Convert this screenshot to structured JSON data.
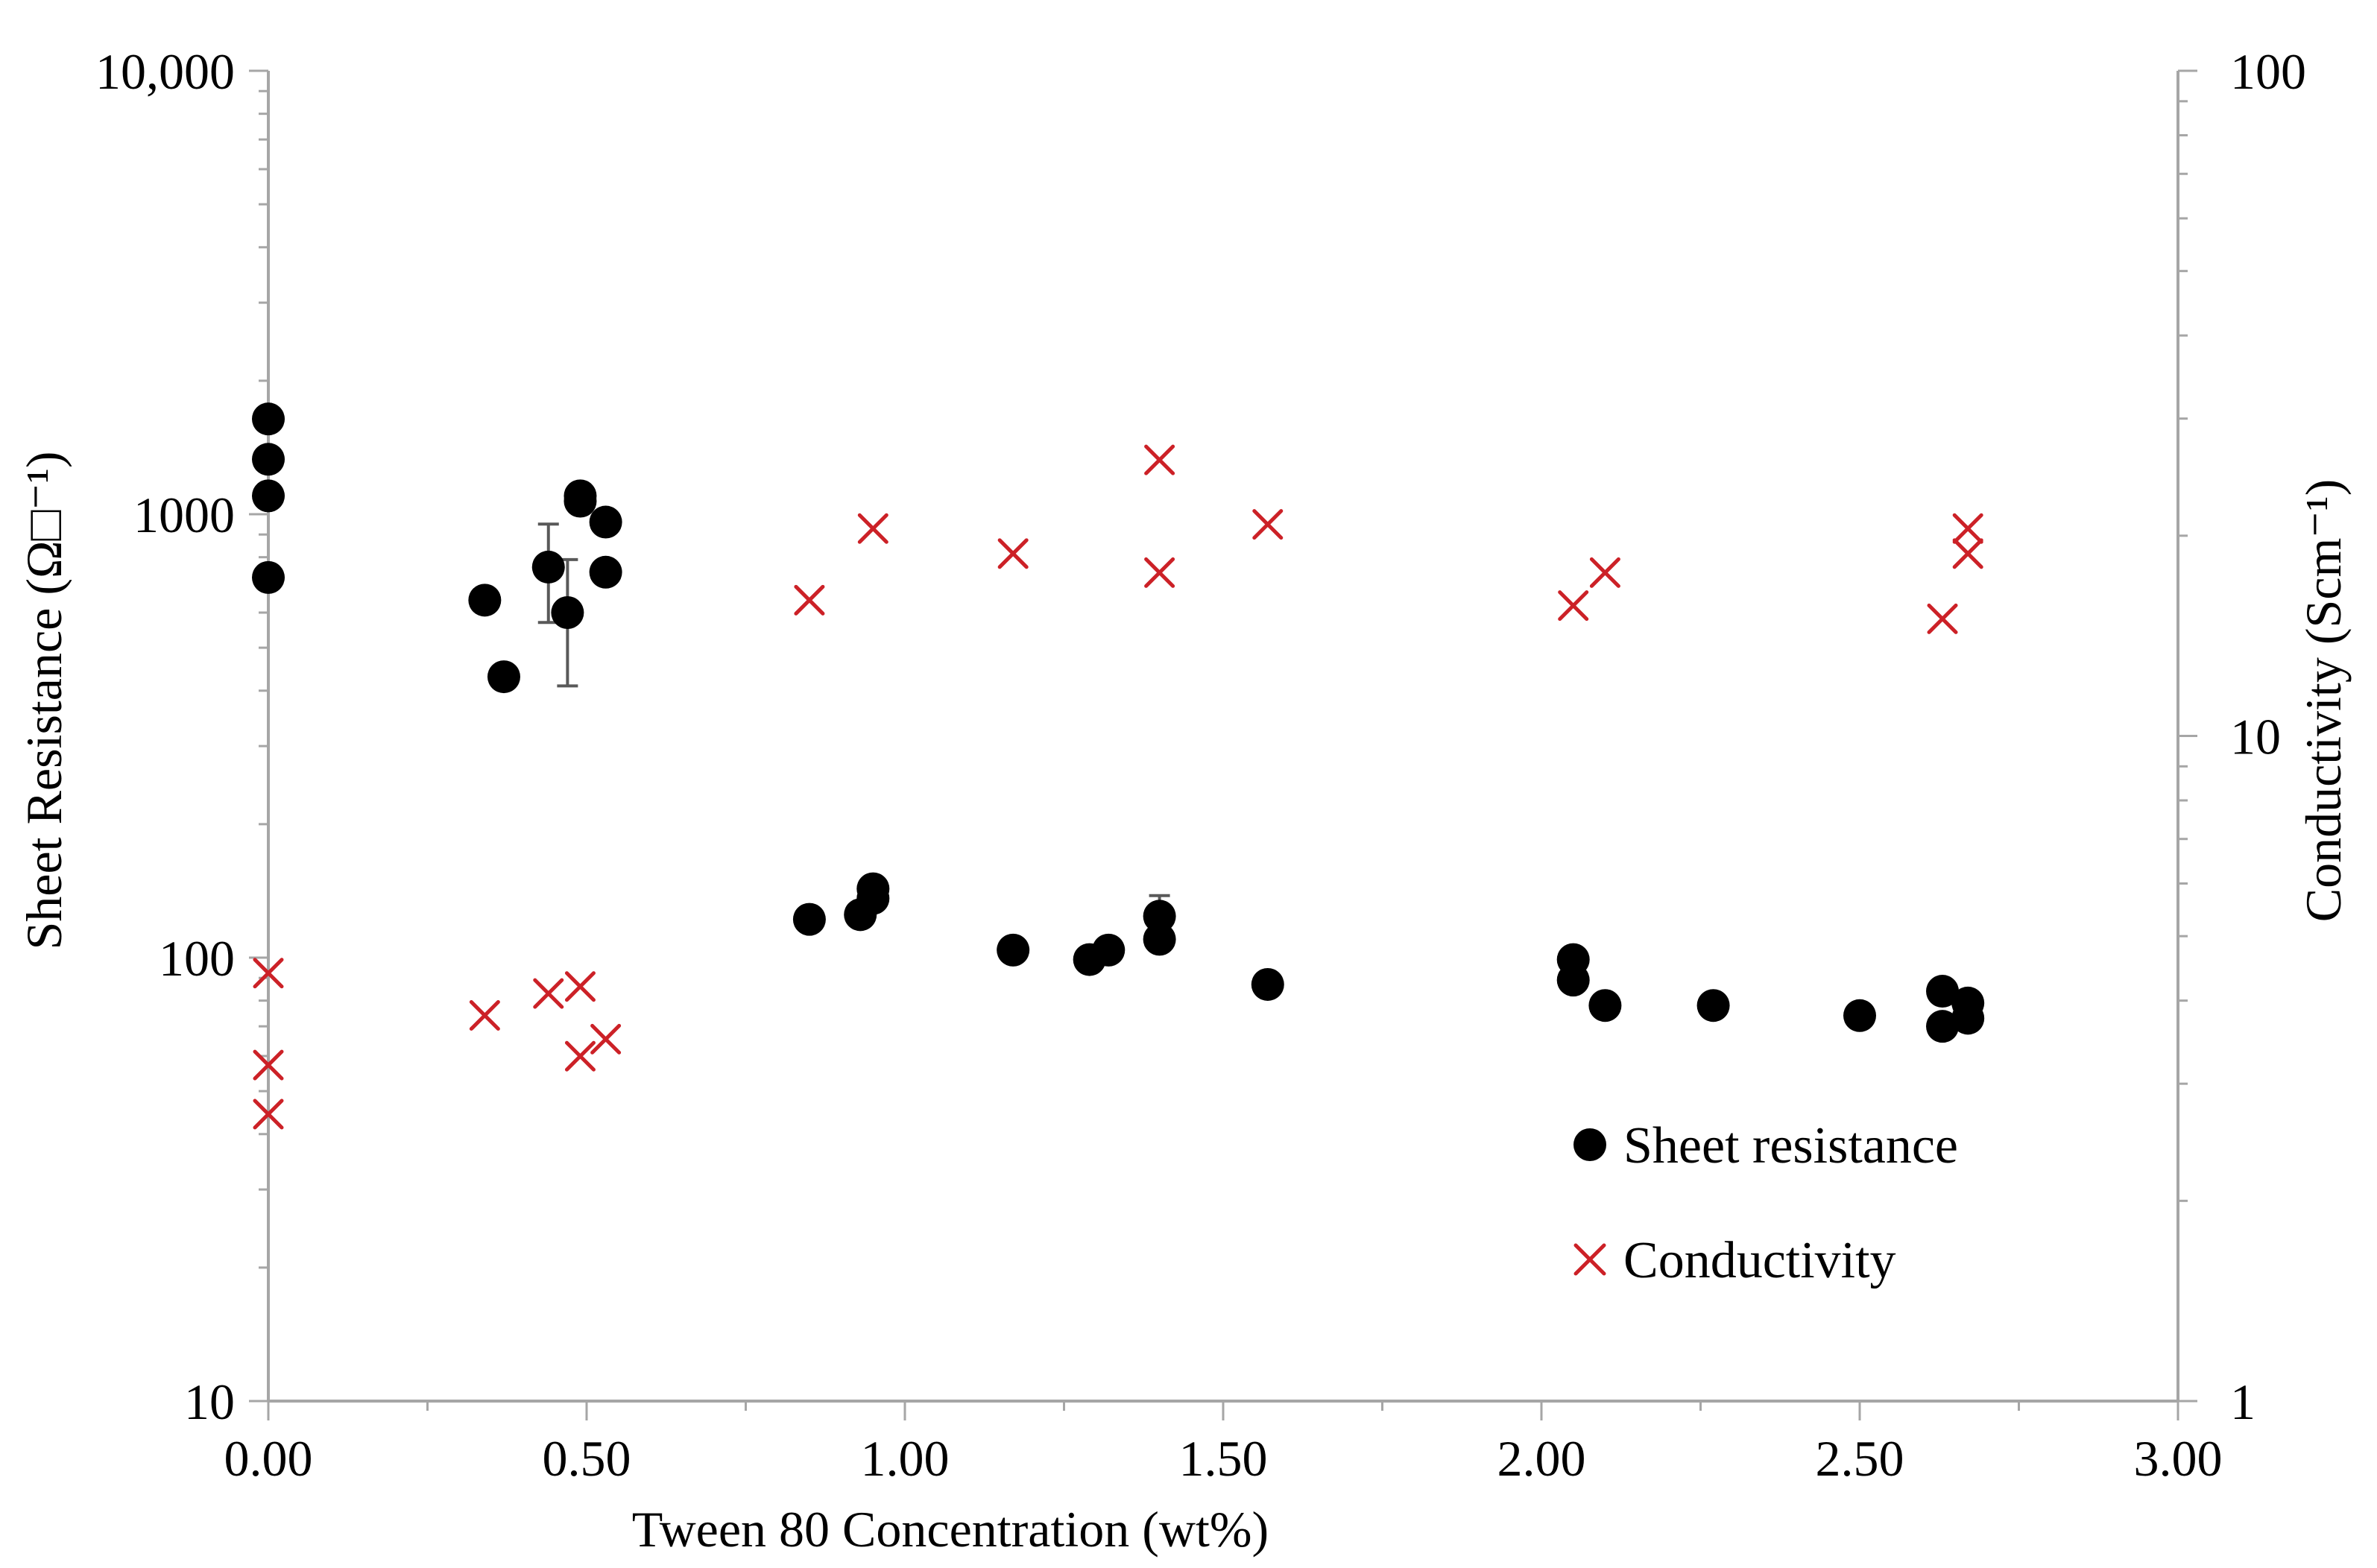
{
  "chart_data": {
    "type": "scatter",
    "title": "",
    "xlabel": "Tween 80 Concentration (wt%)",
    "ylabel": "Sheet Resistance (Ω□⁻¹)",
    "y2label": "Conductivity (Scm⁻¹)",
    "xlim": [
      0,
      3
    ],
    "ylim": [
      10,
      10000
    ],
    "y2lim": [
      1,
      100
    ],
    "yscale": "log",
    "y2scale": "log",
    "x_ticks": [
      "0.00",
      "0.50",
      "1.00",
      "1.50",
      "2.00",
      "2.50",
      "3.00"
    ],
    "x_tick_values": [
      0,
      0.5,
      1,
      1.5,
      2,
      2.5,
      3
    ],
    "y_ticks": [
      "10",
      "100",
      "1000",
      "10,000"
    ],
    "y_tick_values": [
      10,
      100,
      1000,
      10000
    ],
    "y2_ticks": [
      "1",
      "10",
      "100"
    ],
    "y2_tick_values": [
      1,
      10,
      100
    ],
    "grid": false,
    "legend_position": "bottom-right",
    "series": [
      {
        "name": "Sheet resistance",
        "axis": "left",
        "marker": "circle",
        "color": "#000000",
        "points": [
          {
            "x": 0.0,
            "y": 1640
          },
          {
            "x": 0.0,
            "y": 1330
          },
          {
            "x": 0.0,
            "y": 1100
          },
          {
            "x": 0.0,
            "y": 720
          },
          {
            "x": 0.34,
            "y": 640
          },
          {
            "x": 0.37,
            "y": 430
          },
          {
            "x": 0.44,
            "y": 760,
            "err": 190
          },
          {
            "x": 0.47,
            "y": 600,
            "err": 190
          },
          {
            "x": 0.49,
            "y": 1100
          },
          {
            "x": 0.49,
            "y": 1070
          },
          {
            "x": 0.53,
            "y": 960
          },
          {
            "x": 0.53,
            "y": 740
          },
          {
            "x": 0.85,
            "y": 122
          },
          {
            "x": 0.93,
            "y": 125
          },
          {
            "x": 0.95,
            "y": 143
          },
          {
            "x": 0.95,
            "y": 136
          },
          {
            "x": 1.17,
            "y": 104
          },
          {
            "x": 1.29,
            "y": 99
          },
          {
            "x": 1.32,
            "y": 104
          },
          {
            "x": 1.4,
            "y": 124,
            "err": 14
          },
          {
            "x": 1.4,
            "y": 110
          },
          {
            "x": 1.57,
            "y": 87
          },
          {
            "x": 2.05,
            "y": 99
          },
          {
            "x": 2.05,
            "y": 89
          },
          {
            "x": 2.1,
            "y": 78
          },
          {
            "x": 2.27,
            "y": 78
          },
          {
            "x": 2.5,
            "y": 74
          },
          {
            "x": 2.63,
            "y": 84
          },
          {
            "x": 2.63,
            "y": 70
          },
          {
            "x": 2.67,
            "y": 79
          },
          {
            "x": 2.67,
            "y": 73
          }
        ]
      },
      {
        "name": "Conductivity",
        "axis": "right",
        "marker": "x",
        "color": "#cc2127",
        "points": [
          {
            "x": 0.0,
            "y": 4.4
          },
          {
            "x": 0.0,
            "y": 3.2
          },
          {
            "x": 0.0,
            "y": 2.7
          },
          {
            "x": 0.34,
            "y": 3.8
          },
          {
            "x": 0.44,
            "y": 4.1
          },
          {
            "x": 0.49,
            "y": 4.2
          },
          {
            "x": 0.49,
            "y": 3.3
          },
          {
            "x": 0.53,
            "y": 3.5
          },
          {
            "x": 0.85,
            "y": 16.0
          },
          {
            "x": 0.95,
            "y": 20.5
          },
          {
            "x": 1.17,
            "y": 18.8
          },
          {
            "x": 1.4,
            "y": 26.0
          },
          {
            "x": 1.4,
            "y": 17.6
          },
          {
            "x": 1.57,
            "y": 20.8
          },
          {
            "x": 2.05,
            "y": 15.7
          },
          {
            "x": 2.1,
            "y": 17.6
          },
          {
            "x": 2.63,
            "y": 15.0
          },
          {
            "x": 2.67,
            "y": 20.5
          },
          {
            "x": 2.67,
            "y": 18.8
          }
        ]
      }
    ]
  }
}
